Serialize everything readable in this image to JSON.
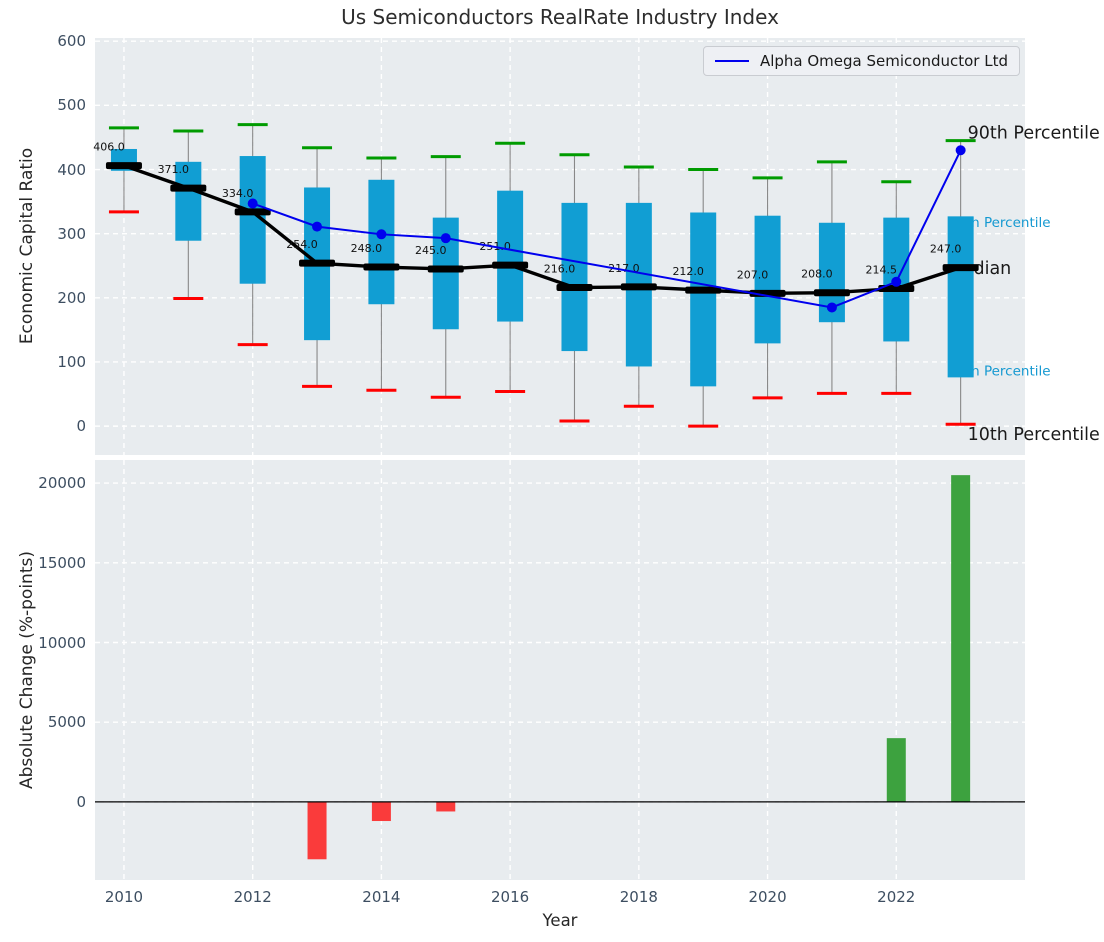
{
  "title": "Us Semiconductors RealRate Industry Index",
  "legend": {
    "label": "Alpha Omega Semiconductor Ltd"
  },
  "colors": {
    "figure_bg": "#ffffff",
    "axes_bg": "#e8ecef",
    "grid": "#ffffff",
    "box_fill": "#119ed3",
    "p90_cap": "#009b00",
    "p10_cap": "#ff0000",
    "whisker": "#888888",
    "median": "#000000",
    "company_line": "#0000ee",
    "bar_positive": "#3da23f",
    "bar_negative": "#fa3b3b",
    "tick_label": "#3d4e61",
    "axis_label": "#262626",
    "title_color": "#2d2d2d",
    "percentile_label_blue": "#1599d1",
    "zero_line": "#000000"
  },
  "chart_data": [
    {
      "type": "boxplot-percentiles",
      "ylabel": "Economic Capital Ratio",
      "years": [
        2010,
        2011,
        2012,
        2013,
        2014,
        2015,
        2016,
        2017,
        2018,
        2019,
        2020,
        2021,
        2022,
        2023
      ],
      "p90": [
        465,
        460,
        470,
        434,
        418,
        420,
        441,
        423,
        404,
        400,
        387,
        412,
        381,
        445
      ],
      "p75": [
        432,
        412,
        421,
        372,
        384,
        325,
        367,
        348,
        348,
        333,
        328,
        317,
        325,
        327
      ],
      "median": [
        406,
        371,
        334,
        254,
        248,
        245,
        251,
        216,
        217,
        212,
        207,
        208,
        214.5,
        247
      ],
      "p25": [
        398,
        289,
        222,
        134,
        190,
        151,
        163,
        117,
        93,
        62,
        129,
        162,
        132,
        76
      ],
      "p10": [
        334,
        199,
        127,
        62,
        56,
        45,
        54,
        8,
        31,
        0,
        44,
        51,
        51,
        3
      ],
      "median_labels": [
        "406.0",
        "371.0",
        "334.0",
        "254.0",
        "248.0",
        "245.0",
        "251.0",
        "216.0",
        "217.0",
        "212.0",
        "207.0",
        "208.0",
        "214.5",
        "247.0"
      ],
      "company_series": {
        "name": "Alpha Omega Semiconductor Ltd",
        "x": [
          2012,
          2013,
          2014,
          2015,
          2021,
          2022,
          2023
        ],
        "y": [
          347,
          311,
          299,
          293,
          185,
          225,
          430
        ]
      },
      "xlim": [
        2009.55,
        2024.0
      ],
      "ylim": [
        -45,
        605
      ],
      "yticks": [
        0,
        100,
        200,
        300,
        400,
        500,
        600
      ],
      "xticks": [
        2010,
        2012,
        2014,
        2016,
        2018,
        2020,
        2022
      ],
      "right_labels": [
        {
          "text": "90th Percentile",
          "color": "#1a1a1a",
          "size": 17.5,
          "y_value": 458,
          "dx": 7
        },
        {
          "text": "75th Percentile",
          "color": "#1599d1",
          "size": 13.5,
          "y_value": 318,
          "dx": -12
        },
        {
          "text": "Median",
          "color": "#1a1a1a",
          "size": 17.5,
          "y_value": 247,
          "dx": -13
        },
        {
          "text": "25th Percentile",
          "color": "#1599d1",
          "size": 13.5,
          "y_value": 86,
          "dx": -12
        },
        {
          "text": "10th Percentile",
          "color": "#1a1a1a",
          "size": 17.5,
          "y_value": -12,
          "dx": 7
        }
      ]
    },
    {
      "type": "bar",
      "ylabel": "Absolute Change (%-points)",
      "xlabel": "Year",
      "x": [
        2013,
        2014,
        2015,
        2022,
        2023
      ],
      "values": [
        -3600,
        -1200,
        -600,
        4000,
        20500
      ],
      "xlim": [
        2009.55,
        2024.0
      ],
      "ylim": [
        -4900,
        21450
      ],
      "yticks": [
        0,
        5000,
        10000,
        15000,
        20000
      ],
      "xticks": [
        2010,
        2012,
        2014,
        2016,
        2018,
        2020,
        2022
      ]
    }
  ]
}
